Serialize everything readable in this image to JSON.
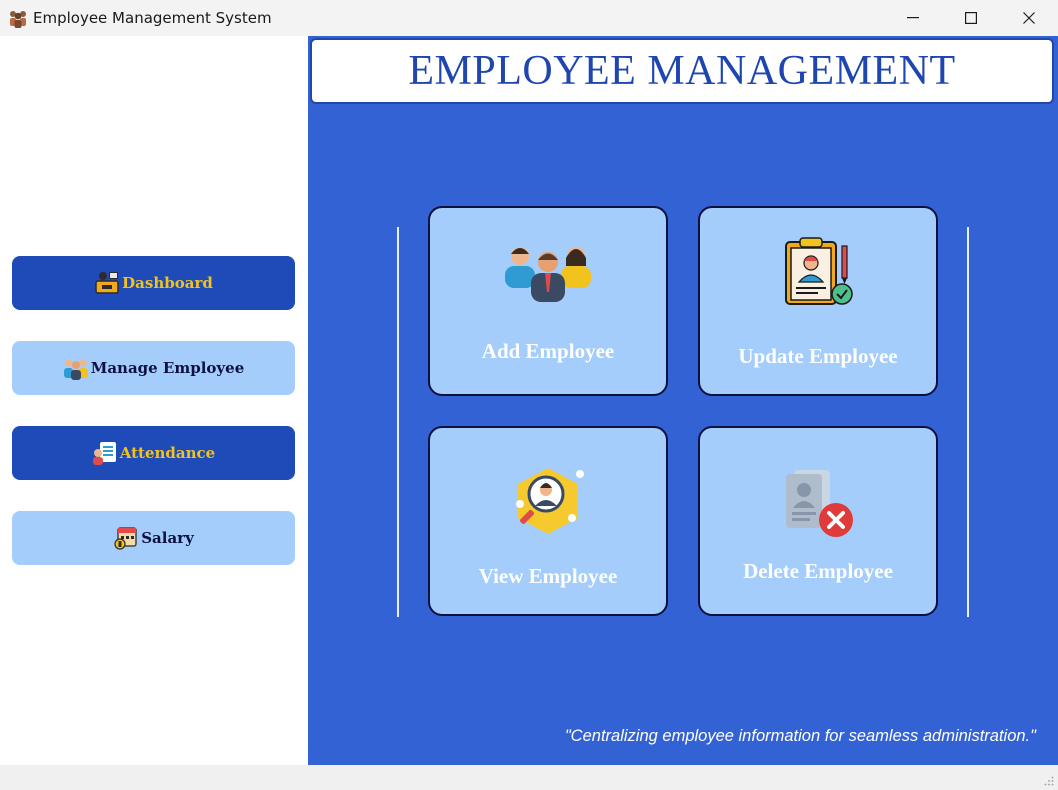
{
  "window": {
    "title": "Employee Management System",
    "controls": [
      "minimize",
      "maximize",
      "close"
    ]
  },
  "sidebar": {
    "items": [
      {
        "label": "Dashboard",
        "icon": "dashboard-desk-icon",
        "style": "active-dark"
      },
      {
        "label": "Manage Employee",
        "icon": "people-icon",
        "style": "light"
      },
      {
        "label": "Attendance",
        "icon": "attendance-icon",
        "style": "dark"
      },
      {
        "label": "Salary",
        "icon": "salary-calendar-icon",
        "style": "light"
      }
    ]
  },
  "header": {
    "title": "EMPLOYEE MANAGEMENT"
  },
  "cards": [
    {
      "label": "Add Employee",
      "icon": "employees-group-icon"
    },
    {
      "label": "Update Employee",
      "icon": "clipboard-profile-check-icon"
    },
    {
      "label": "View Employee",
      "icon": "magnifier-profile-icon"
    },
    {
      "label": "Delete Employee",
      "icon": "profile-delete-icon"
    }
  ],
  "footer": {
    "quote": "\"Centralizing employee information for seamless administration.\""
  },
  "colors": {
    "main_bg": "#3362d5",
    "dark_button": "#1f4bb8",
    "dark_button_text": "#f2c31c",
    "light_button": "#a4cdfb",
    "light_button_text": "#0d1140",
    "title_color": "#1f46b0"
  }
}
